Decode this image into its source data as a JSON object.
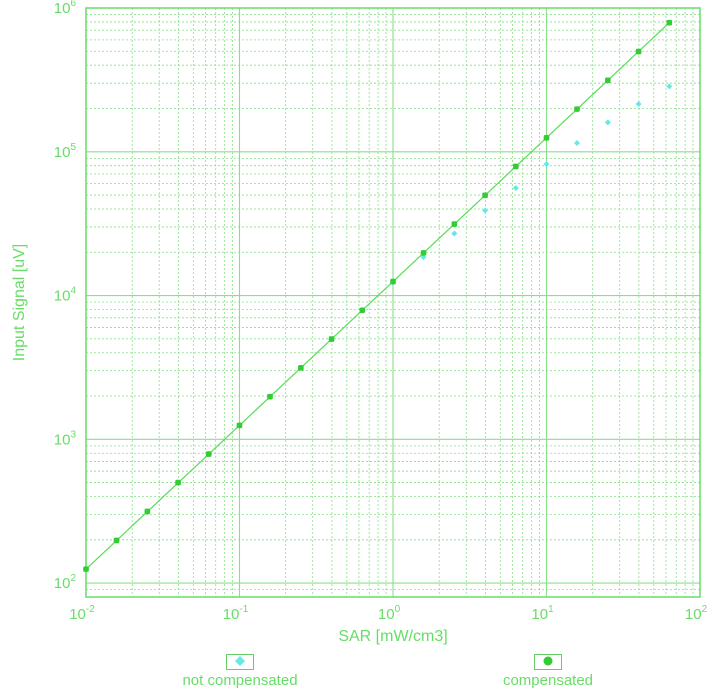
{
  "chart_data": {
    "type": "scatter",
    "title": "",
    "xlabel": "SAR [mW/cm3]",
    "ylabel": "Input Signal [uV]",
    "xscale": "log",
    "yscale": "log",
    "xlim": [
      0.01,
      100
    ],
    "ylim": [
      80,
      1000000
    ],
    "grid": true,
    "x_ticks": [
      "10-2",
      "10-1",
      "100",
      "101",
      "102"
    ],
    "y_ticks": [
      "102",
      "103",
      "104",
      "105",
      "106"
    ],
    "legend_position": "bottom",
    "series": [
      {
        "name": "not compensated",
        "marker": "diamond",
        "color": "#66e8e8",
        "x": [
          0.01,
          0.0158,
          0.0251,
          0.0398,
          0.0631,
          0.1,
          0.158,
          0.251,
          0.398,
          0.631,
          1.0,
          1.58,
          2.51,
          3.98,
          6.31,
          10.0,
          15.8,
          25.1,
          39.8,
          63.1
        ],
        "y": [
          125,
          198,
          315,
          500,
          790,
          1250,
          1980,
          3140,
          4980,
          7850,
          12300,
          18500,
          27000,
          39000,
          56000,
          82000,
          115000,
          160000,
          215000,
          285000
        ]
      },
      {
        "name": "compensated",
        "marker": "circle",
        "color": "#33cc33",
        "x": [
          0.01,
          0.0158,
          0.0251,
          0.0398,
          0.0631,
          0.1,
          0.158,
          0.251,
          0.398,
          0.631,
          1.0,
          1.58,
          2.51,
          3.98,
          6.31,
          10.0,
          15.8,
          25.1,
          39.8,
          63.1
        ],
        "y": [
          125,
          198,
          315,
          500,
          790,
          1250,
          1980,
          3140,
          4980,
          7900,
          12500,
          19800,
          31400,
          49800,
          79000,
          125000,
          198000,
          314000,
          498000,
          790000
        ]
      }
    ],
    "fit_line": {
      "x": [
        0.01,
        63.1
      ],
      "y": [
        125,
        790000
      ]
    }
  },
  "legend": {
    "items": [
      {
        "label": "not compensated",
        "marker": "diamond",
        "color": "#66e8e8"
      },
      {
        "label": "compensated",
        "marker": "circle",
        "color": "#33cc33"
      }
    ]
  }
}
